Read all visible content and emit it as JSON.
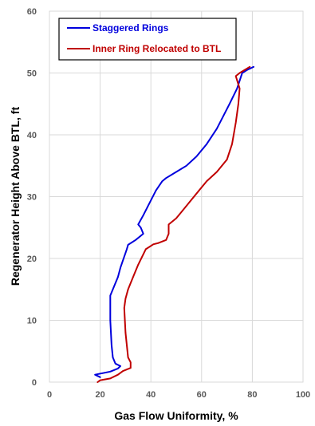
{
  "chart_data": {
    "type": "line",
    "xlabel": "Gas Flow Uniformity, %",
    "ylabel": "Regenerator Height Above BTL, ft",
    "xlim": [
      0,
      100
    ],
    "ylim": [
      0,
      60
    ],
    "xticks": [
      0,
      20,
      40,
      60,
      80,
      100
    ],
    "yticks": [
      0,
      10,
      20,
      30,
      40,
      50,
      60
    ],
    "grid": true,
    "legend_position": "top-left",
    "series": [
      {
        "name": "Staggered Rings",
        "color": "#0000dd",
        "points": [
          [
            20,
            0.8
          ],
          [
            18,
            1.2
          ],
          [
            24,
            1.7
          ],
          [
            27,
            2.2
          ],
          [
            28,
            2.6
          ],
          [
            26,
            3.0
          ],
          [
            25,
            4
          ],
          [
            24.5,
            6
          ],
          [
            24,
            10
          ],
          [
            24,
            14
          ],
          [
            25,
            15
          ],
          [
            27,
            17
          ],
          [
            28,
            18.5
          ],
          [
            30.5,
            21.5
          ],
          [
            31,
            22.2
          ],
          [
            34,
            23
          ],
          [
            37,
            24
          ],
          [
            36,
            25
          ],
          [
            35,
            25.5
          ],
          [
            37,
            27
          ],
          [
            39.5,
            29
          ],
          [
            42,
            31
          ],
          [
            44.5,
            32.5
          ],
          [
            46,
            33
          ],
          [
            50,
            34
          ],
          [
            54,
            35
          ],
          [
            58,
            36.5
          ],
          [
            62,
            38.5
          ],
          [
            66,
            41
          ],
          [
            71,
            45
          ],
          [
            74,
            47.5
          ],
          [
            76,
            50
          ],
          [
            78,
            50.5
          ],
          [
            80.5,
            51
          ]
        ],
        "x": [
          20,
          18,
          24,
          27,
          28,
          26,
          25,
          24.5,
          24,
          24,
          25,
          27,
          28,
          30.5,
          31,
          34,
          37,
          36,
          35,
          37,
          39.5,
          42,
          44.5,
          46,
          50,
          54,
          58,
          62,
          66,
          71,
          74,
          76,
          78,
          80.5
        ],
        "y": [
          0.8,
          1.2,
          1.7,
          2.2,
          2.6,
          3.0,
          4,
          6,
          10,
          14,
          15,
          17,
          18.5,
          21.5,
          22.2,
          23,
          24,
          25,
          25.5,
          27,
          29,
          31,
          32.5,
          33,
          34,
          35,
          36.5,
          38.5,
          41,
          45,
          47.5,
          50,
          50.5,
          51
        ]
      },
      {
        "name": "Inner Ring Relocated to BTL",
        "color": "#c00000",
        "points": [
          [
            19,
            0
          ],
          [
            20,
            0.3
          ],
          [
            24,
            0.6
          ],
          [
            27,
            1.2
          ],
          [
            29,
            1.8
          ],
          [
            32,
            2.3
          ],
          [
            32,
            3.2
          ],
          [
            31,
            4
          ],
          [
            30,
            8
          ],
          [
            29.5,
            12
          ],
          [
            30,
            13.5
          ],
          [
            31,
            15
          ],
          [
            33,
            17
          ],
          [
            35,
            19
          ],
          [
            38,
            21.5
          ],
          [
            41,
            22.3
          ],
          [
            43,
            22.5
          ],
          [
            46,
            23
          ],
          [
            47,
            24
          ],
          [
            47,
            25
          ],
          [
            47,
            25.5
          ],
          [
            50,
            26.5
          ],
          [
            52,
            27.5
          ],
          [
            55,
            29
          ],
          [
            59,
            31
          ],
          [
            62,
            32.5
          ],
          [
            66,
            34
          ],
          [
            70,
            36
          ],
          [
            72,
            38.5
          ],
          [
            73.5,
            42
          ],
          [
            74.5,
            45
          ],
          [
            75,
            47.5
          ],
          [
            73.5,
            49.5
          ],
          [
            75,
            50
          ],
          [
            77,
            50.5
          ],
          [
            79,
            51
          ]
        ],
        "x": [
          19,
          20,
          24,
          27,
          29,
          32,
          32,
          31,
          30,
          29.5,
          30,
          31,
          33,
          35,
          38,
          41,
          43,
          46,
          47,
          47,
          47,
          50,
          52,
          55,
          59,
          62,
          66,
          70,
          72,
          73.5,
          74.5,
          75,
          73.5,
          75,
          77,
          79
        ],
        "y": [
          0,
          0.3,
          0.6,
          1.2,
          1.8,
          2.3,
          3.2,
          4,
          8,
          12,
          13.5,
          15,
          17,
          19,
          21.5,
          22.3,
          22.5,
          23,
          24,
          25,
          25.5,
          26.5,
          27.5,
          29,
          31,
          32.5,
          34,
          36,
          38.5,
          42,
          45,
          47.5,
          49.5,
          50,
          50.5,
          51
        ]
      }
    ]
  }
}
